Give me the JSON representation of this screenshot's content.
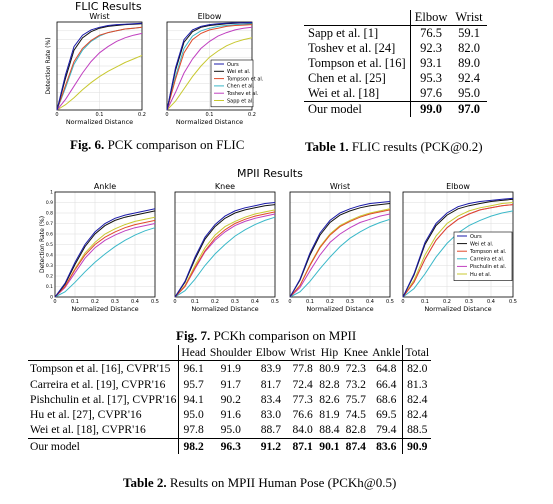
{
  "fig6": {
    "suptitle": "FLIC Results",
    "caption_label": "Fig. 6.",
    "caption_text": " PCK comparison on FLIC"
  },
  "fig7": {
    "suptitle": "MPII Results",
    "caption_label": "Fig. 7.",
    "caption_text": " PCKh comparison on MPII"
  },
  "colors": {
    "Ours": "#1a1aa8",
    "Wei": "#111111",
    "Tompson": "#e04a2a",
    "Chen": "#3ab8c8",
    "Toshev": "#c040c0",
    "Sapp": "#c8c830",
    "Carreira": "#3ab8c8",
    "Pischulin": "#c040c0",
    "Hu": "#c8c830"
  },
  "chart_data": [
    {
      "type": "line",
      "title": "Wrist",
      "xlabel": "Normalized Distance",
      "ylabel": "Detection Rate (%)",
      "xlim": [
        0,
        0.2
      ],
      "ylim": [
        0,
        1
      ],
      "xticks": [
        "0",
        "0.1",
        "0.2"
      ],
      "yticks": [],
      "x": [
        0,
        0.02,
        0.04,
        0.06,
        0.08,
        0.1,
        0.12,
        0.14,
        0.16,
        0.18,
        0.2
      ],
      "series": [
        {
          "name": "Ours",
          "values": [
            0,
            0.4,
            0.72,
            0.85,
            0.91,
            0.94,
            0.96,
            0.97,
            0.975,
            0.98,
            0.985
          ]
        },
        {
          "name": "Wei et al.",
          "values": [
            0,
            0.36,
            0.68,
            0.82,
            0.89,
            0.93,
            0.95,
            0.96,
            0.97,
            0.975,
            0.98
          ]
        },
        {
          "name": "Tompson et al.",
          "values": [
            0,
            0.28,
            0.55,
            0.7,
            0.79,
            0.85,
            0.88,
            0.9,
            0.92,
            0.93,
            0.94
          ]
        },
        {
          "name": "Chen et al.",
          "values": [
            0,
            0.25,
            0.52,
            0.68,
            0.78,
            0.84,
            0.88,
            0.9,
            0.92,
            0.93,
            0.94
          ]
        },
        {
          "name": "Toshev et al.",
          "values": [
            0,
            0.12,
            0.27,
            0.42,
            0.55,
            0.65,
            0.72,
            0.78,
            0.82,
            0.85,
            0.87
          ]
        },
        {
          "name": "Sapp et al.",
          "values": [
            0,
            0.06,
            0.14,
            0.23,
            0.31,
            0.38,
            0.44,
            0.49,
            0.54,
            0.58,
            0.62
          ]
        }
      ]
    },
    {
      "type": "line",
      "title": "Elbow",
      "xlabel": "Normalized Distance",
      "ylabel": "",
      "xlim": [
        0,
        0.2
      ],
      "ylim": [
        0,
        1
      ],
      "xticks": [
        "0",
        "0.1",
        "0.2"
      ],
      "yticks": [],
      "x": [
        0,
        0.02,
        0.04,
        0.06,
        0.08,
        0.1,
        0.12,
        0.14,
        0.16,
        0.18,
        0.2
      ],
      "series": [
        {
          "name": "Ours",
          "values": [
            0,
            0.48,
            0.8,
            0.91,
            0.95,
            0.97,
            0.98,
            0.985,
            0.99,
            0.99,
            0.995
          ]
        },
        {
          "name": "Wei et al.",
          "values": [
            0,
            0.45,
            0.77,
            0.89,
            0.94,
            0.96,
            0.97,
            0.98,
            0.985,
            0.99,
            0.99
          ]
        },
        {
          "name": "Tompson et al.",
          "values": [
            0,
            0.35,
            0.65,
            0.8,
            0.87,
            0.91,
            0.93,
            0.95,
            0.96,
            0.965,
            0.97
          ]
        },
        {
          "name": "Chen et al.",
          "values": [
            0,
            0.38,
            0.7,
            0.84,
            0.9,
            0.93,
            0.95,
            0.96,
            0.97,
            0.975,
            0.98
          ]
        },
        {
          "name": "Toshev et al.",
          "values": [
            0,
            0.2,
            0.42,
            0.58,
            0.7,
            0.78,
            0.84,
            0.88,
            0.91,
            0.93,
            0.94
          ]
        },
        {
          "name": "Sapp et al.",
          "values": [
            0,
            0.1,
            0.24,
            0.38,
            0.5,
            0.6,
            0.67,
            0.73,
            0.77,
            0.8,
            0.82
          ]
        }
      ]
    },
    {
      "type": "line",
      "title": "Ankle",
      "xlabel": "Normalized Distance",
      "ylabel": "Detection Rate (%)",
      "xlim": [
        0,
        0.5
      ],
      "ylim": [
        0,
        1
      ],
      "xticks": [
        "0",
        "0.1",
        "0.2",
        "0.3",
        "0.4",
        "0.5"
      ],
      "yticks": [
        "0",
        "0.1",
        "0.2",
        "0.3",
        "0.4",
        "0.5",
        "0.6",
        "0.7",
        "0.8",
        "0.9",
        "1"
      ],
      "x": [
        0,
        0.05,
        0.1,
        0.15,
        0.2,
        0.25,
        0.3,
        0.35,
        0.4,
        0.45,
        0.5
      ],
      "series": [
        {
          "name": "Ours",
          "values": [
            0,
            0.13,
            0.33,
            0.5,
            0.62,
            0.7,
            0.75,
            0.78,
            0.8,
            0.82,
            0.84
          ]
        },
        {
          "name": "Wei et al.",
          "values": [
            0,
            0.12,
            0.31,
            0.48,
            0.6,
            0.68,
            0.73,
            0.76,
            0.78,
            0.8,
            0.82
          ]
        },
        {
          "name": "Tompson et al.",
          "values": [
            0,
            0.1,
            0.26,
            0.4,
            0.5,
            0.57,
            0.62,
            0.66,
            0.69,
            0.71,
            0.73
          ]
        },
        {
          "name": "Carreira et al.",
          "values": [
            0,
            0.05,
            0.14,
            0.24,
            0.33,
            0.41,
            0.48,
            0.54,
            0.59,
            0.63,
            0.66
          ]
        },
        {
          "name": "Pischulin et al.",
          "values": [
            0,
            0.09,
            0.23,
            0.37,
            0.47,
            0.54,
            0.59,
            0.63,
            0.66,
            0.68,
            0.7
          ]
        },
        {
          "name": "Hu et al.",
          "values": [
            0,
            0.1,
            0.27,
            0.42,
            0.52,
            0.6,
            0.65,
            0.69,
            0.72,
            0.74,
            0.76
          ]
        }
      ]
    },
    {
      "type": "line",
      "title": "Knee",
      "xlabel": "Normalized Distance",
      "ylabel": "",
      "xlim": [
        0,
        0.5
      ],
      "ylim": [
        0,
        1
      ],
      "xticks": [
        "0",
        "0.1",
        "0.2",
        "0.3",
        "0.4",
        "0.5"
      ],
      "yticks": [],
      "x": [
        0,
        0.05,
        0.1,
        0.15,
        0.2,
        0.25,
        0.3,
        0.35,
        0.4,
        0.45,
        0.5
      ],
      "series": [
        {
          "name": "Ours",
          "values": [
            0,
            0.15,
            0.38,
            0.57,
            0.69,
            0.77,
            0.82,
            0.85,
            0.87,
            0.89,
            0.9
          ]
        },
        {
          "name": "Wei et al.",
          "values": [
            0,
            0.14,
            0.36,
            0.55,
            0.67,
            0.75,
            0.8,
            0.83,
            0.85,
            0.87,
            0.88
          ]
        },
        {
          "name": "Tompson et al.",
          "values": [
            0,
            0.1,
            0.28,
            0.44,
            0.56,
            0.64,
            0.7,
            0.74,
            0.77,
            0.79,
            0.81
          ]
        },
        {
          "name": "Carreira et al.",
          "values": [
            0,
            0.06,
            0.17,
            0.3,
            0.41,
            0.5,
            0.58,
            0.64,
            0.69,
            0.73,
            0.76
          ]
        },
        {
          "name": "Pischulin et al.",
          "values": [
            0,
            0.1,
            0.27,
            0.43,
            0.54,
            0.62,
            0.68,
            0.72,
            0.75,
            0.77,
            0.79
          ]
        },
        {
          "name": "Hu et al.",
          "values": [
            0,
            0.11,
            0.3,
            0.47,
            0.59,
            0.67,
            0.72,
            0.76,
            0.79,
            0.81,
            0.83
          ]
        }
      ]
    },
    {
      "type": "line",
      "title": "Wrist",
      "xlabel": "Normalized Distance",
      "ylabel": "",
      "xlim": [
        0,
        0.5
      ],
      "ylim": [
        0,
        1
      ],
      "xticks": [
        "0",
        "0.1",
        "0.2",
        "0.3",
        "0.4",
        "0.5"
      ],
      "yticks": [],
      "x": [
        0,
        0.05,
        0.1,
        0.15,
        0.2,
        0.25,
        0.3,
        0.35,
        0.4,
        0.45,
        0.5
      ],
      "series": [
        {
          "name": "Ours",
          "values": [
            0,
            0.17,
            0.42,
            0.61,
            0.73,
            0.8,
            0.84,
            0.87,
            0.89,
            0.9,
            0.91
          ]
        },
        {
          "name": "Wei et al.",
          "values": [
            0,
            0.16,
            0.4,
            0.59,
            0.71,
            0.78,
            0.82,
            0.85,
            0.87,
            0.88,
            0.89
          ]
        },
        {
          "name": "Tompson et al.",
          "values": [
            0,
            0.11,
            0.3,
            0.47,
            0.59,
            0.67,
            0.72,
            0.76,
            0.79,
            0.81,
            0.83
          ]
        },
        {
          "name": "Carreira et al.",
          "values": [
            0,
            0.05,
            0.15,
            0.27,
            0.38,
            0.48,
            0.56,
            0.62,
            0.67,
            0.71,
            0.74
          ]
        },
        {
          "name": "Pischulin et al.",
          "values": [
            0,
            0.09,
            0.25,
            0.4,
            0.52,
            0.6,
            0.66,
            0.71,
            0.74,
            0.77,
            0.79
          ]
        },
        {
          "name": "Hu et al.",
          "values": [
            0,
            0.11,
            0.31,
            0.48,
            0.6,
            0.68,
            0.73,
            0.77,
            0.8,
            0.82,
            0.84
          ]
        }
      ]
    },
    {
      "type": "line",
      "title": "Elbow",
      "xlabel": "Normalized Distance",
      "ylabel": "",
      "xlim": [
        0,
        0.5
      ],
      "ylim": [
        0,
        1
      ],
      "xticks": [
        "0",
        "0.1",
        "0.2",
        "0.3",
        "0.4",
        "0.5"
      ],
      "yticks": [],
      "x": [
        0,
        0.05,
        0.1,
        0.15,
        0.2,
        0.25,
        0.3,
        0.35,
        0.4,
        0.45,
        0.5
      ],
      "series": [
        {
          "name": "Ours",
          "values": [
            0,
            0.22,
            0.52,
            0.7,
            0.8,
            0.86,
            0.89,
            0.91,
            0.92,
            0.93,
            0.94
          ]
        },
        {
          "name": "Wei et al.",
          "values": [
            0,
            0.21,
            0.5,
            0.68,
            0.78,
            0.84,
            0.87,
            0.89,
            0.91,
            0.92,
            0.93
          ]
        },
        {
          "name": "Tompson et al.",
          "values": [
            0,
            0.14,
            0.36,
            0.54,
            0.66,
            0.74,
            0.79,
            0.83,
            0.85,
            0.87,
            0.88
          ]
        },
        {
          "name": "Carreira et al.",
          "values": [
            0,
            0.08,
            0.22,
            0.38,
            0.51,
            0.61,
            0.68,
            0.73,
            0.77,
            0.8,
            0.82
          ]
        },
        {
          "name": "Pischulin et al.",
          "values": [
            0,
            0.14,
            0.36,
            0.54,
            0.66,
            0.74,
            0.79,
            0.83,
            0.85,
            0.87,
            0.88
          ]
        },
        {
          "name": "Hu et al.",
          "values": [
            0,
            0.16,
            0.4,
            0.58,
            0.7,
            0.77,
            0.82,
            0.85,
            0.87,
            0.89,
            0.9
          ]
        }
      ]
    },
    {
      "type": "table",
      "title": "FLIC results (PCK@0.2)",
      "columns": [
        "",
        "Elbow",
        "Wrist"
      ],
      "rows": [
        [
          "Sapp et al. [1]",
          "76.5",
          "59.1"
        ],
        [
          "Toshev et al. [24]",
          "92.3",
          "82.0"
        ],
        [
          "Tompson et al. [16]",
          "93.1",
          "89.0"
        ],
        [
          "Chen et al. [25]",
          "95.3",
          "92.4"
        ],
        [
          "Wei et al. [18]",
          "97.6",
          "95.0"
        ],
        [
          "Our model",
          "99.0",
          "97.0"
        ]
      ]
    },
    {
      "type": "table",
      "title": "Results on MPII Human Pose (PCKh@0.5)",
      "columns": [
        "",
        "Head",
        "Shoulder",
        "Elbow",
        "Wrist",
        "Hip",
        "Knee",
        "Ankle",
        "Total"
      ],
      "rows": [
        [
          "Tompson et al. [16], CVPR'15",
          "96.1",
          "91.9",
          "83.9",
          "77.8",
          "80.9",
          "72.3",
          "64.8",
          "82.0"
        ],
        [
          "Carreira et al. [19], CVPR'16",
          "95.7",
          "91.7",
          "81.7",
          "72.4",
          "82.8",
          "73.2",
          "66.4",
          "81.3"
        ],
        [
          "Pishchulin et al. [17], CVPR'16",
          "94.1",
          "90.2",
          "83.4",
          "77.3",
          "82.6",
          "75.7",
          "68.6",
          "82.4"
        ],
        [
          "Hu et al. [27], CVPR'16",
          "95.0",
          "91.6",
          "83.0",
          "76.6",
          "81.9",
          "74.5",
          "69.5",
          "82.4"
        ],
        [
          "Wei et al. [18], CVPR'16",
          "97.8",
          "95.0",
          "88.7",
          "84.0",
          "88.4",
          "82.8",
          "79.4",
          "88.5"
        ],
        [
          "Our model",
          "98.2",
          "96.3",
          "91.2",
          "87.1",
          "90.1",
          "87.4",
          "83.6",
          "90.9"
        ]
      ]
    }
  ],
  "table1": {
    "label": "Table 1.",
    "caption_text": " FLIC results (PCK@0.2)"
  },
  "table2": {
    "label": "Table 2.",
    "caption_text": " Results on MPII Human Pose (PCKh@0.5)"
  }
}
